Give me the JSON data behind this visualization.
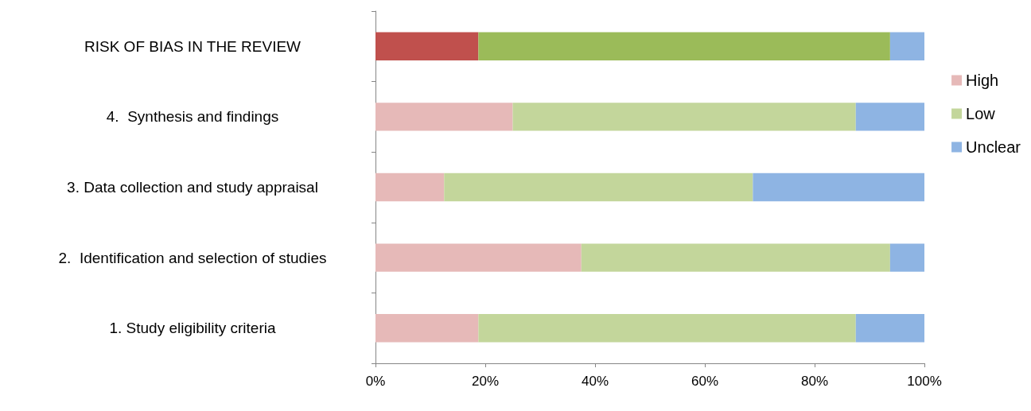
{
  "chart_data": {
    "type": "bar",
    "orientation": "horizontal",
    "stacked": true,
    "categories": [
      "RISK OF BIAS IN THE REVIEW",
      "4.  Synthesis and findings",
      "3. Data collection and study appraisal",
      "2.  Identification and selection of studies",
      "1. Study eligibility criteria"
    ],
    "series": [
      {
        "name": "High",
        "color": "#e6b9b8",
        "colors": [
          "#c0504d",
          "#e6b9b8",
          "#e6b9b8",
          "#e6b9b8",
          "#e6b9b8"
        ],
        "values": [
          18.75,
          25,
          12.5,
          37.5,
          18.75
        ]
      },
      {
        "name": "Low",
        "color": "#c3d69b",
        "colors": [
          "#9bbb59",
          "#c3d69b",
          "#c3d69b",
          "#c3d69b",
          "#c3d69b"
        ],
        "values": [
          75,
          62.5,
          56.25,
          56.25,
          68.75
        ]
      },
      {
        "name": "Unclear",
        "color": "#8eb4e3",
        "values": [
          6.25,
          12.5,
          31.25,
          6.25,
          12.5
        ]
      }
    ],
    "xlim": [
      0,
      100
    ],
    "xticks": [
      {
        "value": 0,
        "label": "0%"
      },
      {
        "value": 20,
        "label": "20%"
      },
      {
        "value": 40,
        "label": "40%"
      },
      {
        "value": 60,
        "label": "60%"
      },
      {
        "value": 80,
        "label": "80%"
      },
      {
        "value": 100,
        "label": "100%"
      }
    ],
    "grid": false,
    "legend": "right"
  }
}
